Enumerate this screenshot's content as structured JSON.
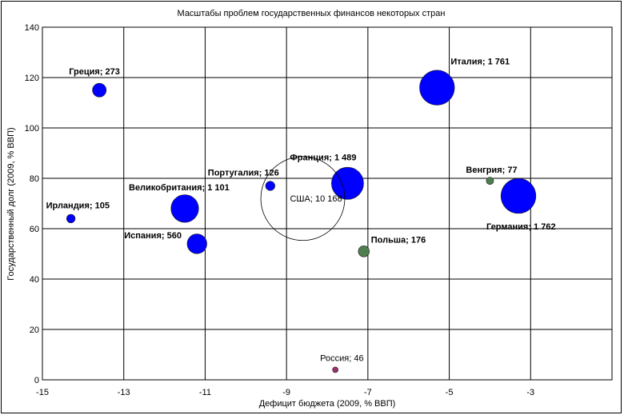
{
  "chart_data": {
    "type": "bubble",
    "title": "Масштабы проблем государственных финансов некоторых  стран",
    "xlabel": "Дефицит бюджета (2009, % ВВП)",
    "ylabel": "Государственный долг (2009, % ВВП)",
    "xlim": [
      -15,
      -1
    ],
    "ylim": [
      0,
      140
    ],
    "x_ticks": [
      -15,
      -13,
      -11,
      -9,
      -7,
      -5,
      -3
    ],
    "y_ticks": [
      0,
      20,
      40,
      60,
      80,
      100,
      120,
      140
    ],
    "x_tick_labels": [
      "-15",
      "-13",
      "-11",
      "-9",
      "-7",
      "-5",
      "-3"
    ],
    "y_tick_labels": [
      "0",
      "20",
      "40",
      "60",
      "80",
      "100",
      "120",
      "140"
    ],
    "grid": true,
    "points": [
      {
        "label": "Греция; 273",
        "x": -13.6,
        "y": 115,
        "size": 273,
        "color": "#0000ff",
        "filled": true
      },
      {
        "label": "Италия; 1 761",
        "x": -5.3,
        "y": 116,
        "size": 1761,
        "color": "#0000ff",
        "filled": true
      },
      {
        "label": "Португалия; 126",
        "x": -9.4,
        "y": 77,
        "size": 126,
        "color": "#0000ff",
        "filled": true
      },
      {
        "label": "Франция; 1 489",
        "x": -7.5,
        "y": 78,
        "size": 1489,
        "color": "#0000ff",
        "filled": true
      },
      {
        "label": "Великобритания; 1 101",
        "x": -11.5,
        "y": 68,
        "size": 1101,
        "color": "#0000ff",
        "filled": true
      },
      {
        "label": "Ирландия; 105",
        "x": -14.3,
        "y": 64,
        "size": 105,
        "color": "#0000ff",
        "filled": true
      },
      {
        "label": "Испания; 560",
        "x": -11.2,
        "y": 54,
        "size": 560,
        "color": "#0000ff",
        "filled": true
      },
      {
        "label": "США; 10 168",
        "x": -8.6,
        "y": 72,
        "size": 10168,
        "color": "#000000",
        "filled": false
      },
      {
        "label": "Венгрия; 77",
        "x": -4.0,
        "y": 79,
        "size": 77,
        "color": "#4f7f4f",
        "filled": true
      },
      {
        "label": "Германия; 1 762",
        "x": -3.3,
        "y": 73,
        "size": 1762,
        "color": "#0000ff",
        "filled": true
      },
      {
        "label": "Польша; 176",
        "x": -7.1,
        "y": 51,
        "size": 176,
        "color": "#4f7f4f",
        "filled": true
      },
      {
        "label": "Россия; 46",
        "x": -7.8,
        "y": 4,
        "size": 46,
        "color": "#a0306a",
        "filled": true
      }
    ]
  }
}
